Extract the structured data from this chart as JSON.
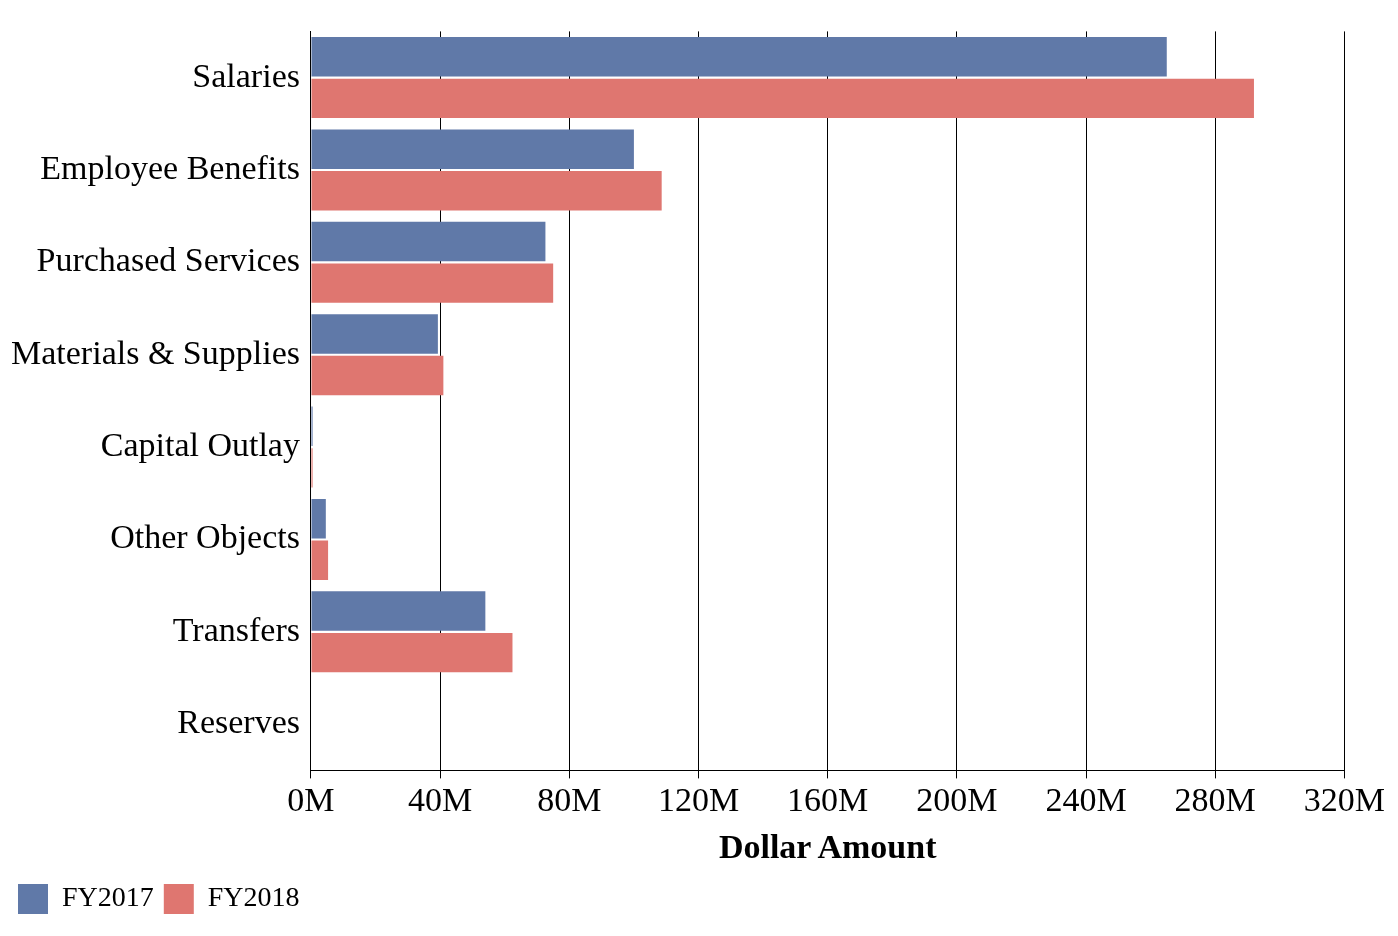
{
  "chart_data": {
    "type": "bar",
    "orientation": "horizontal",
    "xlabel": "Dollar Amount",
    "categories": [
      "Salaries",
      "Employee Benefits",
      "Purchased Services",
      "Materials & Supplies",
      "Capital Outlay",
      "Other Objects",
      "Transfers",
      "Reserves"
    ],
    "series": [
      {
        "name": "FY2017",
        "color": "#6079a8",
        "values": [
          265,
          100,
          72.6,
          39.3,
          0.5,
          4.6,
          54,
          null
        ]
      },
      {
        "name": "FY2018",
        "color": "#df7670",
        "values": [
          292,
          108.6,
          75,
          41,
          0.5,
          5.3,
          62.4,
          null
        ]
      }
    ],
    "xlim": [
      0,
      320
    ],
    "xticks": [
      {
        "value": 0,
        "label": "0M"
      },
      {
        "value": 40,
        "label": "40M"
      },
      {
        "value": 80,
        "label": "80M"
      },
      {
        "value": 120,
        "label": "120M"
      },
      {
        "value": 160,
        "label": "160M"
      },
      {
        "value": 200,
        "label": "200M"
      },
      {
        "value": 240,
        "label": "240M"
      },
      {
        "value": 280,
        "label": "280M"
      },
      {
        "value": 320,
        "label": "320M"
      }
    ],
    "grid": "x",
    "legend": "bottom left"
  }
}
